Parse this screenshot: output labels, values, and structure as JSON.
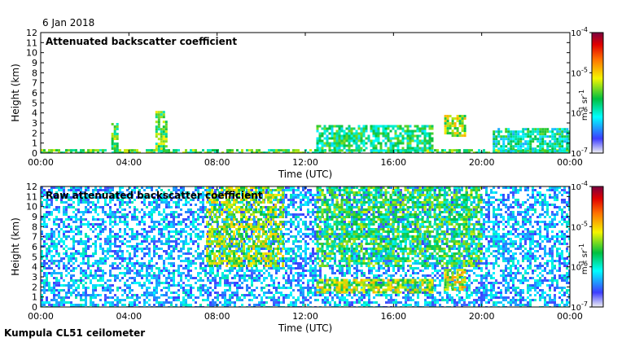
{
  "date": "6 Jan 2018",
  "footer": "Kumpula CL51 ceilometer",
  "chart_data": [
    {
      "type": "heatmap",
      "title": "Attenuated backscatter coefficient",
      "xlabel": "Time (UTC)",
      "ylabel": "Height (km)",
      "xticks": [
        "00:00",
        "04:00",
        "08:00",
        "12:00",
        "16:00",
        "20:00",
        "00:00"
      ],
      "x_range_hours": [
        0,
        24
      ],
      "ylim": [
        0,
        12
      ],
      "yticks": [
        0,
        1,
        2,
        3,
        4,
        5,
        6,
        7,
        8,
        9,
        10,
        11,
        12
      ],
      "colorbar": {
        "unit_base": "m",
        "unit_base_exp": "-1",
        "unit_sr": "sr",
        "unit_sr_exp": "-1",
        "labels": [
          {
            "base": "10",
            "exp": "-4"
          },
          {
            "base": "10",
            "exp": "-5"
          },
          {
            "base": "10",
            "exp": "-6"
          },
          {
            "base": "10",
            "exp": "-7"
          }
        ],
        "range_log10": [
          -7,
          -4
        ]
      },
      "features": [
        {
          "t_start": 0.0,
          "t_end": 24.0,
          "h_bottom": 0.0,
          "h_top": 0.4,
          "log10": -5.6,
          "desc": "surface layer"
        },
        {
          "t_start": 3.2,
          "t_end": 3.5,
          "h_bottom": 0.3,
          "h_top": 3.0,
          "log10": -5.5
        },
        {
          "t_start": 5.2,
          "t_end": 5.7,
          "h_bottom": 0.3,
          "h_top": 4.2,
          "log10": -5.5
        },
        {
          "t_start": 12.5,
          "t_end": 17.8,
          "h_bottom": 0.3,
          "h_top": 2.8,
          "log10": -5.8
        },
        {
          "t_start": 18.3,
          "t_end": 19.2,
          "h_bottom": 1.8,
          "h_top": 3.8,
          "log10": -5.3
        },
        {
          "t_start": 20.5,
          "t_end": 24.0,
          "h_bottom": 0.2,
          "h_top": 2.5,
          "log10": -5.9
        }
      ]
    },
    {
      "type": "heatmap",
      "title": "Raw attenuated backscatter coefficient",
      "xlabel": "Time (UTC)",
      "ylabel": "Height (km)",
      "xticks": [
        "00:00",
        "04:00",
        "08:00",
        "12:00",
        "16:00",
        "20:00",
        "00:00"
      ],
      "x_range_hours": [
        0,
        24
      ],
      "ylim": [
        0,
        12
      ],
      "yticks": [
        0,
        1,
        2,
        3,
        4,
        5,
        6,
        7,
        8,
        9,
        10,
        11,
        12
      ],
      "colorbar": {
        "unit_base": "m",
        "unit_base_exp": "-1",
        "unit_sr": "sr",
        "unit_sr_exp": "-1",
        "labels": [
          {
            "base": "10",
            "exp": "-4"
          },
          {
            "base": "10",
            "exp": "-5"
          },
          {
            "base": "10",
            "exp": "-6"
          },
          {
            "base": "10",
            "exp": "-7"
          }
        ],
        "range_log10": [
          -7,
          -4
        ]
      },
      "features": [
        {
          "t_start": 0.0,
          "t_end": 24.0,
          "h_bottom": 0.0,
          "h_top": 12.0,
          "log10": -6.3,
          "desc": "noise background"
        },
        {
          "t_start": 7.5,
          "t_end": 11.0,
          "h_bottom": 4.0,
          "h_top": 12.0,
          "log10": -5.3,
          "desc": "high noise"
        },
        {
          "t_start": 12.5,
          "t_end": 20.0,
          "h_bottom": 4.0,
          "h_top": 12.0,
          "log10": -5.6,
          "desc": "high noise"
        },
        {
          "t_start": 12.5,
          "t_end": 17.8,
          "h_bottom": 1.5,
          "h_top": 2.8,
          "log10": -5.3
        },
        {
          "t_start": 18.3,
          "t_end": 19.2,
          "h_bottom": 1.8,
          "h_top": 3.8,
          "log10": -5.2
        }
      ]
    }
  ]
}
